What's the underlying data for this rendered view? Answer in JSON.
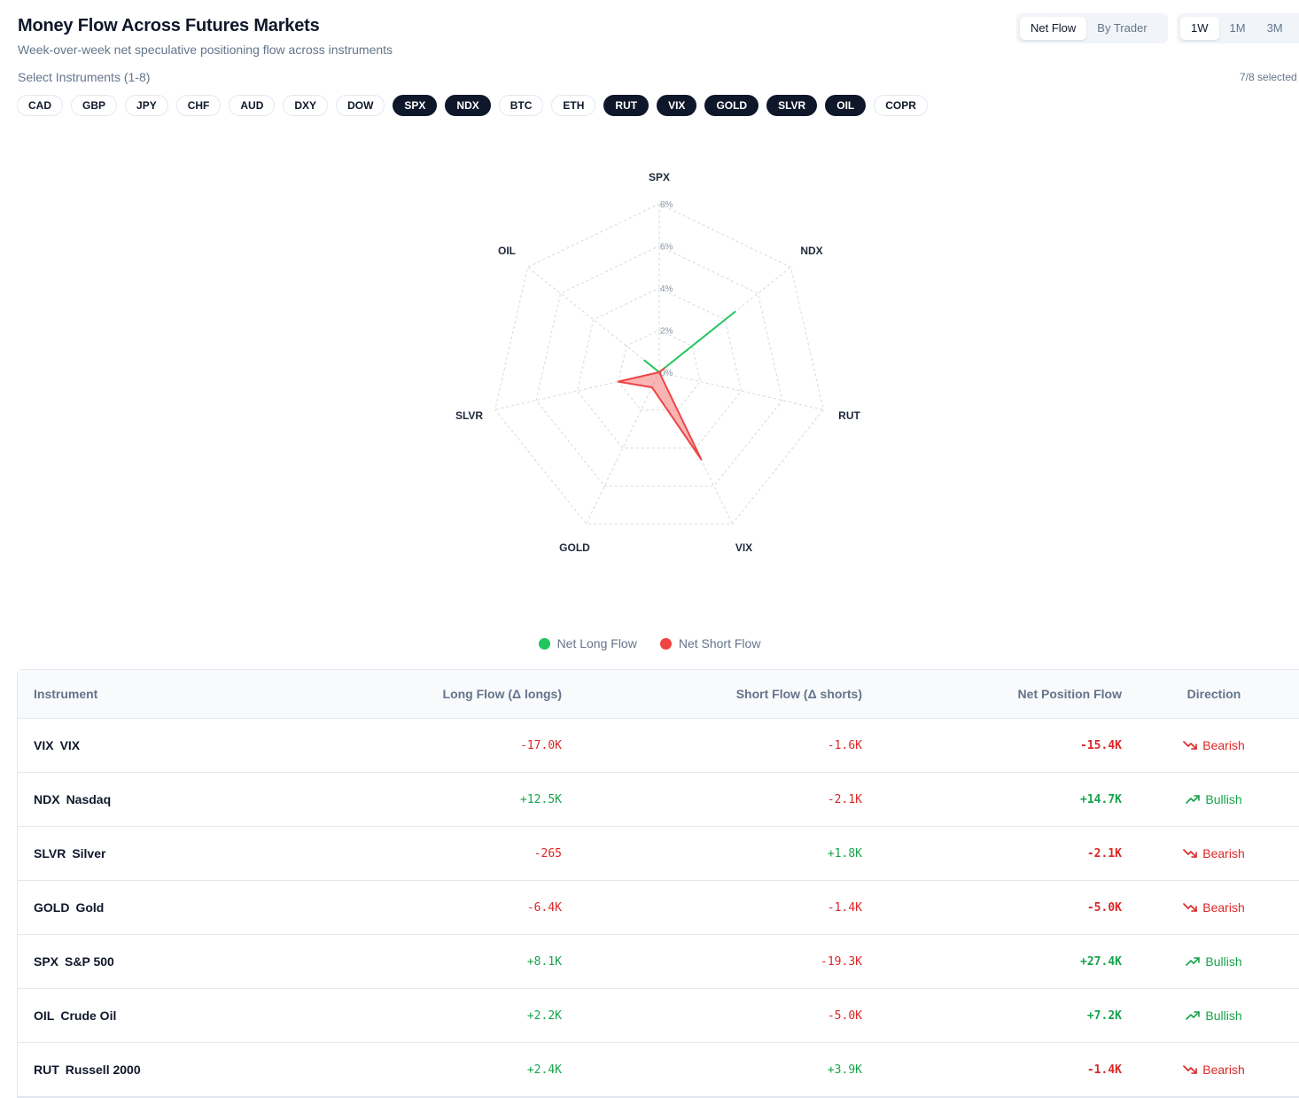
{
  "header": {
    "title": "Money Flow Across Futures Markets",
    "subtitle": "Week-over-week net speculative positioning flow across instruments"
  },
  "view_toggle": [
    {
      "label": "Net Flow",
      "active": true
    },
    {
      "label": "By Trader",
      "active": false
    }
  ],
  "period_toggle": [
    {
      "label": "1W",
      "active": true
    },
    {
      "label": "1M",
      "active": false
    },
    {
      "label": "3M",
      "active": false
    }
  ],
  "selector": {
    "label": "Select Instruments (1-8)",
    "count": "7/8 selected"
  },
  "instruments": [
    {
      "label": "CAD",
      "selected": false
    },
    {
      "label": "GBP",
      "selected": false
    },
    {
      "label": "JPY",
      "selected": false
    },
    {
      "label": "CHF",
      "selected": false
    },
    {
      "label": "AUD",
      "selected": false
    },
    {
      "label": "DXY",
      "selected": false
    },
    {
      "label": "DOW",
      "selected": false
    },
    {
      "label": "SPX",
      "selected": true
    },
    {
      "label": "NDX",
      "selected": true
    },
    {
      "label": "BTC",
      "selected": false
    },
    {
      "label": "ETH",
      "selected": false
    },
    {
      "label": "RUT",
      "selected": true
    },
    {
      "label": "VIX",
      "selected": true
    },
    {
      "label": "GOLD",
      "selected": true
    },
    {
      "label": "SLVR",
      "selected": true
    },
    {
      "label": "OIL",
      "selected": true
    },
    {
      "label": "COPR",
      "selected": false
    }
  ],
  "chart_data": {
    "type": "radar",
    "axes": [
      "SPX",
      "NDX",
      "RUT",
      "VIX",
      "GOLD",
      "SLVR",
      "OIL"
    ],
    "rlim": [
      0,
      8
    ],
    "ticks": [
      "0%",
      "2%",
      "4%",
      "6%",
      "8%"
    ],
    "grid": true,
    "series": [
      {
        "name": "Net Long Flow",
        "color": "#22c55e",
        "values": [
          0.0,
          4.6,
          0.0,
          0.0,
          0.0,
          0.0,
          0.9
        ]
      },
      {
        "name": "Net Short Flow",
        "color": "#ef4444",
        "values": [
          0.0,
          0.3,
          0.0,
          4.6,
          0.8,
          2.0,
          0.0
        ]
      }
    ]
  },
  "legend": [
    {
      "label": "Net Long Flow",
      "color": "#22c55e"
    },
    {
      "label": "Net Short Flow",
      "color": "#ef4444"
    }
  ],
  "table": {
    "headers": {
      "instrument": "Instrument",
      "long": "Long Flow (Δ longs)",
      "short": "Short Flow (Δ shorts)",
      "net": "Net Position Flow",
      "direction": "Direction"
    },
    "rows": [
      {
        "symbol": "VIX",
        "name": "VIX",
        "long": "-17.0K",
        "short": "-1.6K",
        "net": "-15.4K",
        "direction": "Bearish"
      },
      {
        "symbol": "NDX",
        "name": "Nasdaq",
        "long": "+12.5K",
        "short": "-2.1K",
        "net": "+14.7K",
        "direction": "Bullish"
      },
      {
        "symbol": "SLVR",
        "name": "Silver",
        "long": "-265",
        "short": "+1.8K",
        "net": "-2.1K",
        "direction": "Bearish"
      },
      {
        "symbol": "GOLD",
        "name": "Gold",
        "long": "-6.4K",
        "short": "-1.4K",
        "net": "-5.0K",
        "direction": "Bearish"
      },
      {
        "symbol": "SPX",
        "name": "S&P 500",
        "long": "+8.1K",
        "short": "-19.3K",
        "net": "+27.4K",
        "direction": "Bullish"
      },
      {
        "symbol": "OIL",
        "name": "Crude Oil",
        "long": "+2.2K",
        "short": "-5.0K",
        "net": "+7.2K",
        "direction": "Bullish"
      },
      {
        "symbol": "RUT",
        "name": "Russell 2000",
        "long": "+2.4K",
        "short": "+3.9K",
        "net": "-1.4K",
        "direction": "Bearish"
      }
    ]
  },
  "colors": {
    "positive": "#16a34a",
    "negative": "#dc2626",
    "selected_chip": "#0f172a"
  }
}
